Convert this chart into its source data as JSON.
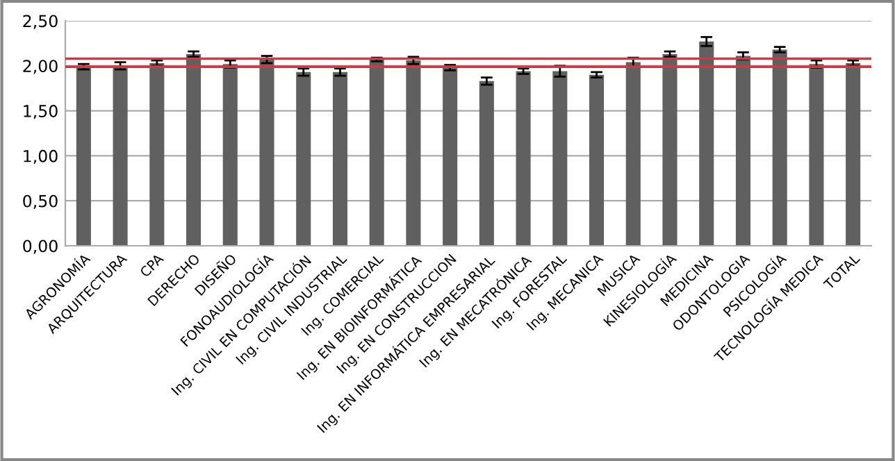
{
  "chart_data": {
    "type": "bar",
    "categories": [
      "AGRONOMÍA",
      "ARQUITECTURA",
      "CPA",
      "DERECHO",
      "DISEÑO",
      "FONOAUDIOLOGÍA",
      "Ing. CIVIL EN COMPUTACIÓN",
      "Ing. CIVIL INDUSTRIAL",
      "Ing. COMERCIAL",
      "Ing. EN BIOINFORMÁTICA",
      "Ing. EN CONSTRUCCION",
      "Ing. EN INFORMÁTICA EMPRESARIAL",
      "Ing. EN MECATRÓNICA",
      "Ing. FORESTAL",
      "Ing. MECANICA",
      "MUSICA",
      "KINESIOLOGÍA",
      "MEDICINA",
      "ODONTOLOGIA",
      "PSICOLOGÍA",
      "TECNOLOGÍA MEDICA",
      "TOTAL"
    ],
    "values": [
      1.99,
      2.0,
      2.03,
      2.13,
      2.02,
      2.07,
      1.93,
      1.93,
      2.07,
      2.06,
      1.98,
      1.83,
      1.94,
      1.94,
      1.9,
      2.04,
      2.13,
      2.27,
      2.11,
      2.18,
      2.02,
      2.03
    ],
    "errors": [
      0.03,
      0.04,
      0.03,
      0.03,
      0.04,
      0.04,
      0.04,
      0.04,
      0.02,
      0.04,
      0.03,
      0.04,
      0.03,
      0.06,
      0.03,
      0.05,
      0.03,
      0.05,
      0.04,
      0.03,
      0.04,
      0.03
    ],
    "color": "#606060",
    "ylim": [
      0,
      2.5
    ],
    "yticks": [
      {
        "value": 0,
        "label": "0,00"
      },
      {
        "value": 0.5,
        "label": "0,50"
      },
      {
        "value": 1,
        "label": "1,00"
      },
      {
        "value": 1.5,
        "label": "1,50"
      },
      {
        "value": 2,
        "label": "2,00"
      },
      {
        "value": 2.5,
        "label": "2,50"
      }
    ],
    "grid": "y",
    "ref_lines": [
      {
        "axis": "y",
        "value": 2.08,
        "color": "#d03a3f"
      },
      {
        "axis": "y",
        "value": 1.99,
        "color": "#d03a3f"
      }
    ]
  }
}
